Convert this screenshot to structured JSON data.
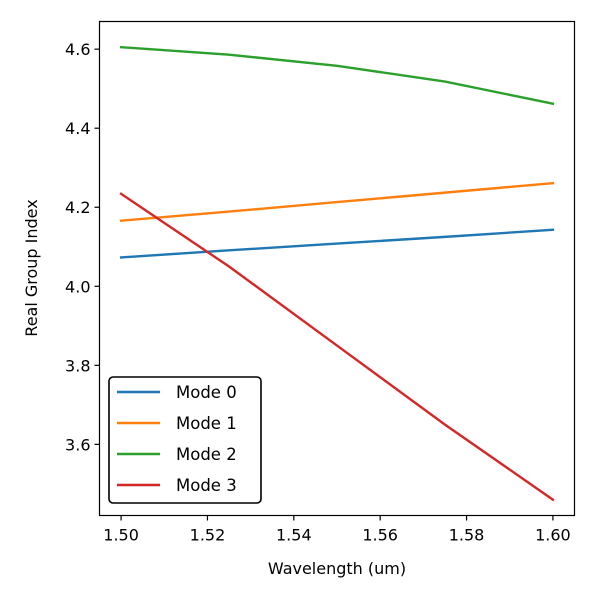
{
  "chart_data": {
    "type": "line",
    "xlabel": "Wavelength (um)",
    "ylabel": "Real Group Index",
    "xlim": [
      1.495,
      1.605
    ],
    "ylim": [
      3.42,
      4.67
    ],
    "xticks": [
      {
        "value": 1.5,
        "label": "1.50"
      },
      {
        "value": 1.52,
        "label": "1.52"
      },
      {
        "value": 1.54,
        "label": "1.54"
      },
      {
        "value": 1.56,
        "label": "1.56"
      },
      {
        "value": 1.58,
        "label": "1.58"
      },
      {
        "value": 1.6,
        "label": "1.60"
      }
    ],
    "yticks": [
      {
        "value": 3.6,
        "label": "3.6"
      },
      {
        "value": 3.8,
        "label": "3.8"
      },
      {
        "value": 4.0,
        "label": "4.0"
      },
      {
        "value": 4.2,
        "label": "4.2"
      },
      {
        "value": 4.4,
        "label": "4.4"
      },
      {
        "value": 4.6,
        "label": "4.6"
      }
    ],
    "grid": false,
    "legend_position": "lower-left",
    "x": [
      1.5,
      1.525,
      1.55,
      1.575,
      1.6
    ],
    "series": [
      {
        "name": "Mode 0",
        "color": "#1f77b4",
        "values": [
          4.073,
          4.091,
          4.108,
          4.125,
          4.143
        ]
      },
      {
        "name": "Mode 1",
        "color": "#ff7f0e",
        "values": [
          4.166,
          4.189,
          4.213,
          4.237,
          4.261
        ]
      },
      {
        "name": "Mode 2",
        "color": "#2ca02c",
        "values": [
          4.605,
          4.586,
          4.558,
          4.518,
          4.462
        ]
      },
      {
        "name": "Mode 3",
        "color": "#d62728",
        "values": [
          4.234,
          4.05,
          3.85,
          3.65,
          3.46
        ]
      }
    ]
  }
}
